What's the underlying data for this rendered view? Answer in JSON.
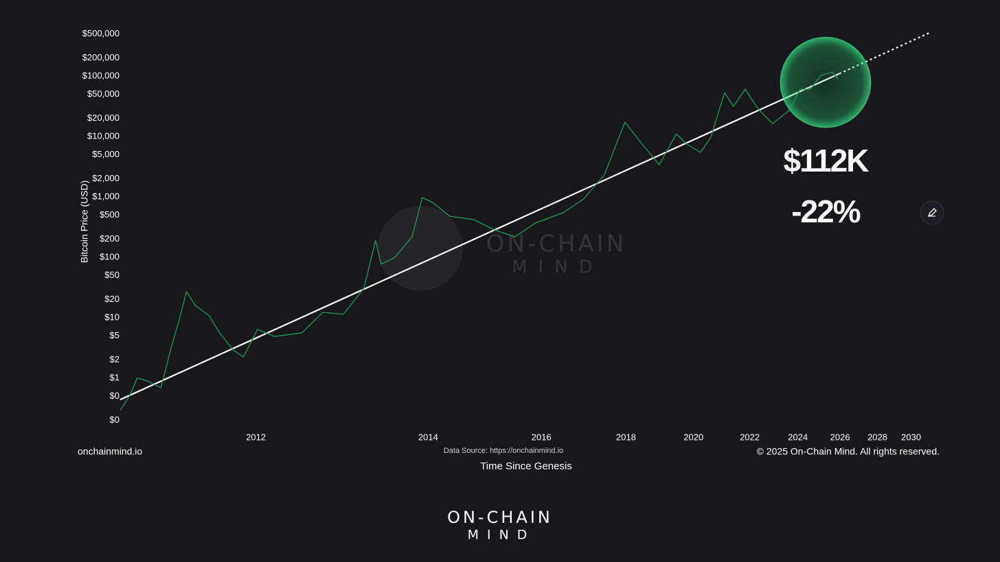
{
  "chart_data": {
    "type": "line",
    "ylabel": "Bitcoin Price (USD)",
    "xlabel": "Time Since Genesis",
    "xscale": "log",
    "yscale": "log",
    "xlim": [
      730,
      8126
    ],
    "ylim": [
      0.15,
      600000
    ],
    "xticks": [
      {
        "value": 1093,
        "label": "2012"
      },
      {
        "value": 1824,
        "label": "2014"
      },
      {
        "value": 2554,
        "label": "2016"
      },
      {
        "value": 3285,
        "label": "2018"
      },
      {
        "value": 4015,
        "label": "2020"
      },
      {
        "value": 4746,
        "label": "2022"
      },
      {
        "value": 5476,
        "label": "2024"
      },
      {
        "value": 6207,
        "label": "2026"
      },
      {
        "value": 6937,
        "label": "2028"
      },
      {
        "value": 7668,
        "label": "2030"
      }
    ],
    "yticks": [
      {
        "value": 500000,
        "label": "$500,000"
      },
      {
        "value": 200000,
        "label": "$200,000"
      },
      {
        "value": 100000,
        "label": "$100,000"
      },
      {
        "value": 50000,
        "label": "$50,000"
      },
      {
        "value": 20000,
        "label": "$20,000"
      },
      {
        "value": 10000,
        "label": "$10,000"
      },
      {
        "value": 5000,
        "label": "$5,000"
      },
      {
        "value": 2000,
        "label": "$2,000"
      },
      {
        "value": 1000,
        "label": "$1,000"
      },
      {
        "value": 500,
        "label": "$500"
      },
      {
        "value": 200,
        "label": "$200"
      },
      {
        "value": 100,
        "label": "$100"
      },
      {
        "value": 50,
        "label": "$50"
      },
      {
        "value": 20,
        "label": "$20"
      },
      {
        "value": 10,
        "label": "$10"
      },
      {
        "value": 5,
        "label": "$5"
      },
      {
        "value": 2,
        "label": "$2"
      },
      {
        "value": 1,
        "label": "$1"
      },
      {
        "value": 0.5,
        "label": "$0"
      },
      {
        "value": 0.2,
        "label": "$0"
      }
    ],
    "series": [
      {
        "color": "#1f9a55",
        "style": "solid",
        "x": [
          730,
          752,
          768,
          791,
          824,
          850,
          868,
          889,
          913,
          951,
          981,
          1022,
          1053,
          1098,
          1155,
          1253,
          1333,
          1417,
          1507,
          1560,
          1586,
          1652,
          1739,
          1792,
          1848,
          1945,
          2089,
          2221,
          2361,
          2510,
          2724,
          2896,
          3079,
          3274,
          3446,
          3626,
          3815,
          3934,
          4099,
          4227,
          4403,
          4521,
          4681,
          4876,
          5079,
          5346,
          5512,
          5684,
          5861,
          6067,
          6168
        ],
        "values": [
          0.29,
          0.53,
          1.0,
          0.9,
          0.69,
          3.3,
          8.3,
          27,
          16,
          10.8,
          5.6,
          2.9,
          2.25,
          6.4,
          4.9,
          5.6,
          12.3,
          11.4,
          30.8,
          192,
          77,
          100,
          219,
          975,
          813,
          479,
          422,
          285,
          219,
          371,
          549,
          925,
          2310,
          17300,
          7500,
          3420,
          11100,
          7500,
          5480,
          9740,
          53400,
          31600,
          60800,
          27700,
          16400,
          27700,
          60800,
          60800,
          103000,
          117000,
          90100
        ]
      },
      {
        "color": "#ffffff",
        "style": "solid",
        "x": [
          730,
          6193
        ],
        "values": [
          0.44,
          110000
        ]
      },
      {
        "color": "#ffffff",
        "style": "dotted",
        "x": [
          6193,
          8126
        ],
        "values": [
          110000,
          533000
        ]
      }
    ],
    "annotations": [
      "$112K",
      "-22%"
    ],
    "footer_left": "onchainmind.io",
    "source": "Data Source: https://onchainmind.io",
    "copyright": "© 2025 On-Chain Mind. All rights reserved.",
    "watermark": [
      "ON-CHAIN",
      "MIND"
    ],
    "logo": [
      "ON-CHAIN",
      "MIND"
    ]
  }
}
